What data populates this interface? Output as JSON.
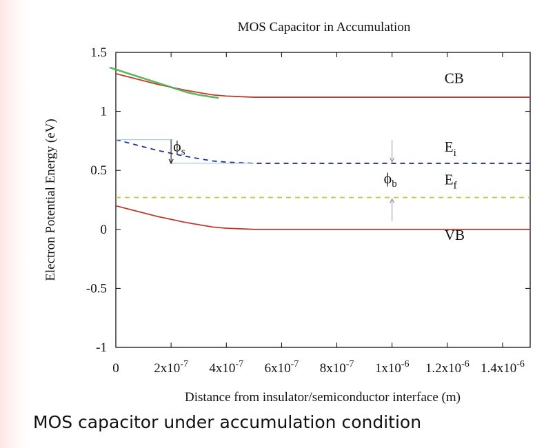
{
  "caption": "MOS capacitor under accumulation condition",
  "chart_data": {
    "type": "line",
    "title": "MOS Capacitor in Accumulation",
    "xlabel": "Distance from insulator/semiconductor interface (m)",
    "ylabel": "Electron Potential Energy (eV)",
    "xlim": [
      0,
      1.5e-06
    ],
    "ylim": [
      -1,
      1.5
    ],
    "x_ticks": [
      {
        "value": 0,
        "mant": "0",
        "exp": ""
      },
      {
        "value": 2e-07,
        "mant": "2x10",
        "exp": "-7"
      },
      {
        "value": 4e-07,
        "mant": "4x10",
        "exp": "-7"
      },
      {
        "value": 6e-07,
        "mant": "6x10",
        "exp": "-7"
      },
      {
        "value": 8e-07,
        "mant": "8x10",
        "exp": "-7"
      },
      {
        "value": 1e-06,
        "mant": "1x10",
        "exp": "-6"
      },
      {
        "value": 1.2e-06,
        "mant": "1.2x10",
        "exp": "-6"
      },
      {
        "value": 1.4e-06,
        "mant": "1.4x10",
        "exp": "-6"
      }
    ],
    "y_ticks": [
      {
        "value": 1.5,
        "label": "1.5"
      },
      {
        "value": 1,
        "label": "1"
      },
      {
        "value": 0.5,
        "label": "0.5"
      },
      {
        "value": 0,
        "label": "0"
      },
      {
        "value": -0.5,
        "label": "-0.5"
      },
      {
        "value": -1,
        "label": "-1"
      }
    ],
    "series": [
      {
        "style": "solid",
        "color": "#c0392b",
        "x": [
          0,
          5e-08,
          1e-07,
          1.5e-07,
          2e-07,
          2.5e-07,
          3e-07,
          3.5e-07,
          4e-07,
          4.5e-07,
          5e-07,
          1.5e-06
        ],
        "y": [
          1.32,
          1.29,
          1.26,
          1.23,
          1.205,
          1.18,
          1.16,
          1.14,
          1.13,
          1.125,
          1.12,
          1.12
        ]
      },
      {
        "style": "dashed",
        "color": "#1f2f9e",
        "x": [
          0,
          5e-08,
          1e-07,
          1.5e-07,
          2e-07,
          2.5e-07,
          3e-07,
          3.5e-07,
          4e-07,
          4.5e-07,
          5e-07,
          1.5e-06
        ],
        "y": [
          0.76,
          0.73,
          0.7,
          0.67,
          0.645,
          0.62,
          0.6,
          0.58,
          0.57,
          0.565,
          0.56,
          0.56
        ]
      },
      {
        "style": "dashed",
        "color": "#c8c84a",
        "x": [
          0,
          1.5e-06
        ],
        "y": [
          0.27,
          0.27
        ]
      },
      {
        "style": "solid",
        "color": "#c0392b",
        "x": [
          0,
          5e-08,
          1e-07,
          1.5e-07,
          2e-07,
          2.5e-07,
          3e-07,
          3.5e-07,
          4e-07,
          4.5e-07,
          5e-07,
          1.5e-06
        ],
        "y": [
          0.2,
          0.17,
          0.14,
          0.11,
          0.085,
          0.06,
          0.04,
          0.02,
          0.01,
          0.005,
          0,
          0
        ]
      }
    ],
    "annotation_stroke": {
      "color": "#4caf50",
      "x": [
        -2e-08,
        2e-08,
        6e-08,
        1e-07,
        1.4e-07,
        1.8e-07,
        2.2e-07,
        2.6e-07,
        3e-07,
        3.4e-07,
        3.7e-07
      ],
      "y": [
        1.37,
        1.34,
        1.31,
        1.28,
        1.25,
        1.22,
        1.19,
        1.16,
        1.14,
        1.125,
        1.115
      ]
    },
    "band_labels": [
      {
        "name": "CB",
        "x": 1.19e-06,
        "y": 1.24,
        "sub": ""
      },
      {
        "name": "E",
        "x": 1.19e-06,
        "y": 0.66,
        "sub": "i"
      },
      {
        "name": "E",
        "x": 1.19e-06,
        "y": 0.38,
        "sub": "f"
      },
      {
        "name": "VB",
        "x": 1.19e-06,
        "y": -0.09,
        "sub": ""
      }
    ],
    "phi_s": {
      "symbol": "ϕ",
      "sub": "s",
      "x_line": 2e-07,
      "y_top": 0.76,
      "y_bottom": 0.56
    },
    "phi_b": {
      "symbol": "ϕ",
      "sub": "b",
      "x_line": 1e-06,
      "y_top": 0.56,
      "y_bottom": 0.27
    }
  }
}
